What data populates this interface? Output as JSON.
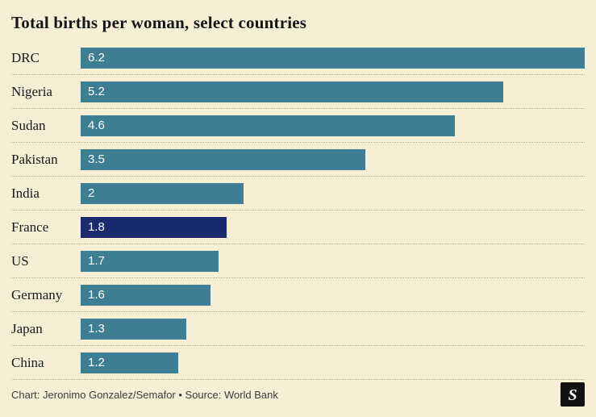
{
  "title": "Total births per woman, select countries",
  "chart_data": {
    "type": "bar",
    "orientation": "horizontal",
    "title": "Total births per woman, select countries",
    "categories": [
      "DRC",
      "Nigeria",
      "Sudan",
      "Pakistan",
      "India",
      "France",
      "US",
      "Germany",
      "Japan",
      "China"
    ],
    "values": [
      6.2,
      5.2,
      4.6,
      3.5,
      2,
      1.8,
      1.7,
      1.6,
      1.3,
      1.2
    ],
    "value_labels": [
      "6.2",
      "5.2",
      "4.6",
      "3.5",
      "2",
      "1.8",
      "1.7",
      "1.6",
      "1.3",
      "1.2"
    ],
    "xlim": [
      0,
      6.2
    ],
    "grid": "dotted-row-separators",
    "legend": "none",
    "highlight_category": "France",
    "bar_color": "#3d7e93",
    "highlight_color": "#1a2a6e"
  },
  "footer": {
    "credit": "Chart: Jeronimo Gonzalez/Semafor • Source: World Bank",
    "logo_glyph": "S"
  },
  "colors": {
    "background": "#f7eed6",
    "bar": "#3d7e93",
    "highlight_bar": "#1a2a6e",
    "text": "#1a1a1a",
    "credit_text": "#3c3c3c",
    "divider": "#b9ae90",
    "logo_background": "#111111",
    "bar_value_text": "#ffffff"
  }
}
